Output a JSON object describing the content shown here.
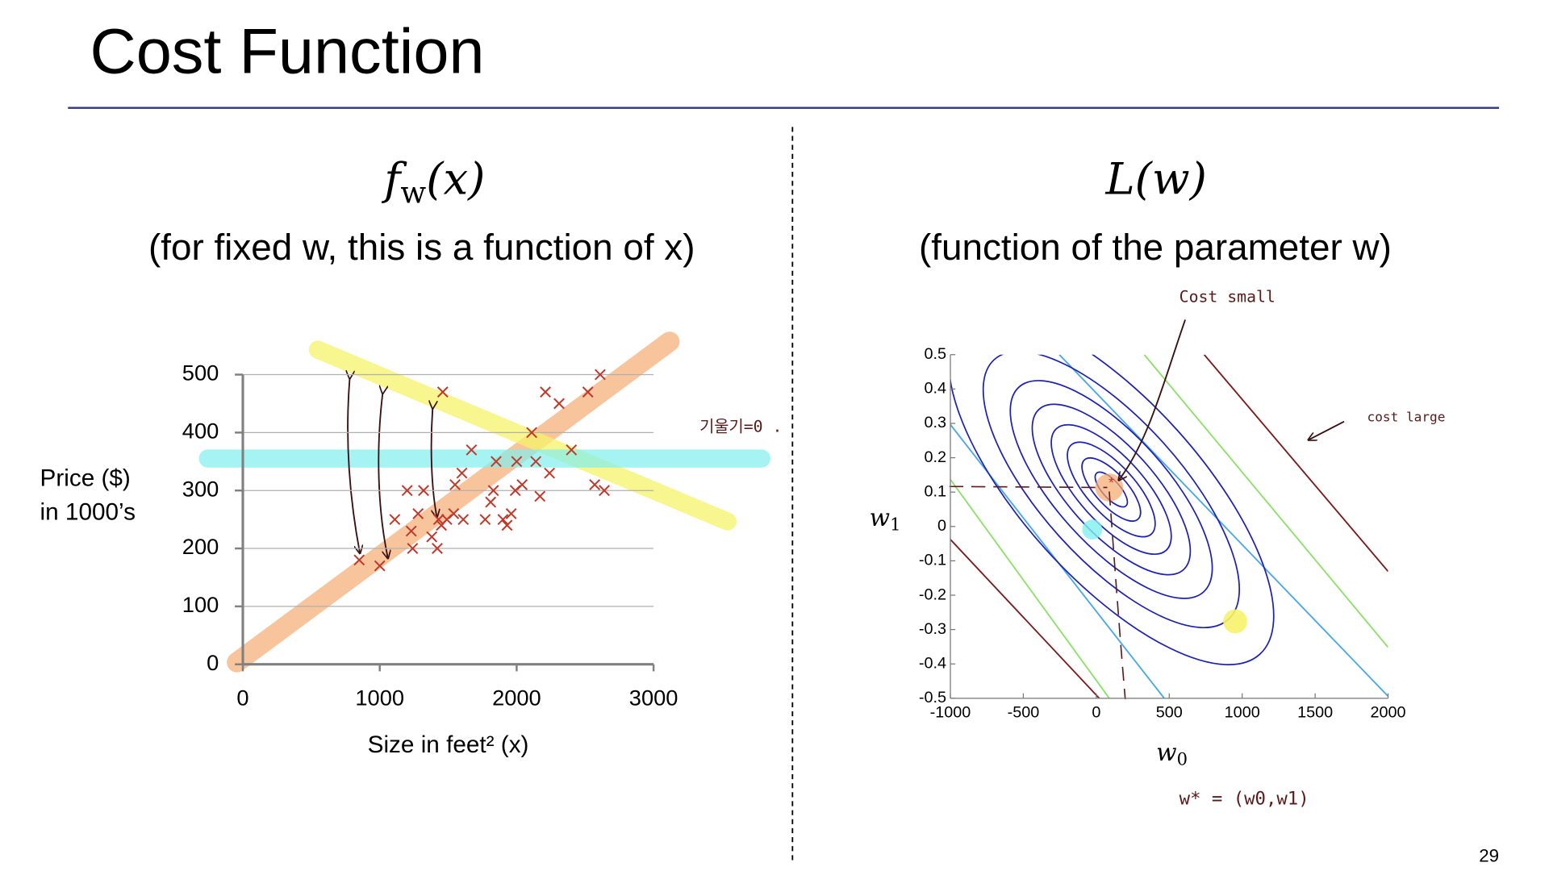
{
  "slide": {
    "title": "Cost Function",
    "page": "29",
    "left_heading": [
      "f",
      "w",
      "(x)"
    ],
    "left_subtitle": "(for fixed w, this is a function of x)",
    "right_heading": "L(w)",
    "right_subtitle": "(function of the parameter w)",
    "note_slope": "기울기=0 .",
    "note_optimum": "w* = (w0,w1)"
  },
  "chart_data": [
    {
      "type": "scatter",
      "x_label": "Size in feet² (x)",
      "y_label": [
        "Price ($)",
        "in 1000’s"
      ],
      "xlim": [
        0,
        3000
      ],
      "ylim": [
        0,
        500
      ],
      "xticks": [
        0,
        1000,
        2000,
        3000
      ],
      "yticks": [
        0,
        100,
        200,
        300,
        400,
        500
      ],
      "grid": true,
      "color": "#c0392b",
      "x": [
        850,
        1000,
        1460,
        1110,
        1200,
        1320,
        1230,
        1280,
        1240,
        1380,
        1420,
        1430,
        1450,
        1490,
        1540,
        1610,
        1550,
        1600,
        1670,
        1770,
        1810,
        1830,
        1850,
        1900,
        1930,
        1960,
        1990,
        2000,
        2040,
        2110,
        2140,
        2170,
        2210,
        2240,
        2310,
        2400,
        2520,
        2570,
        2610,
        2640
      ],
      "y": [
        180,
        170,
        470,
        250,
        300,
        300,
        230,
        260,
        200,
        220,
        200,
        250,
        240,
        250,
        260,
        250,
        310,
        330,
        370,
        250,
        280,
        300,
        350,
        250,
        240,
        260,
        300,
        350,
        310,
        400,
        350,
        290,
        470,
        330,
        450,
        370,
        470,
        310,
        500,
        300
      ]
    },
    {
      "type": "contour",
      "x_label": [
        "w",
        "0"
      ],
      "y_label": [
        "w",
        "1"
      ],
      "xlim": [
        -1000,
        2000
      ],
      "ylim": [
        -0.5,
        0.5
      ],
      "xticks": [
        -1000,
        -500,
        0,
        500,
        1000,
        1500,
        2000
      ],
      "yticks": [
        -0.5,
        -0.4,
        -0.3,
        -0.2,
        -0.1,
        0,
        0.1,
        0.2,
        0.3,
        0.4,
        0.5
      ],
      "annotations": [
        "Cost small",
        "cost large"
      ]
    }
  ]
}
